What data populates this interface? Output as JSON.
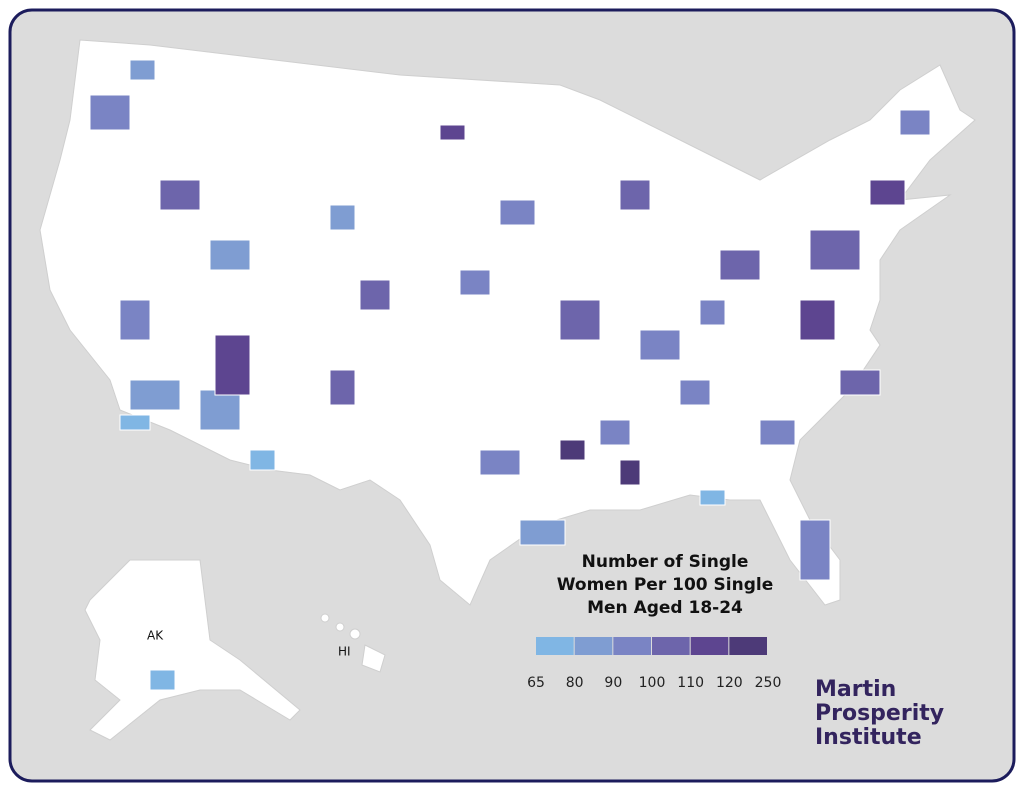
{
  "map": {
    "legend": {
      "title": [
        "Number of Single",
        "Women Per 100 Single",
        "Men Aged 18-24"
      ],
      "ticks": [
        65,
        80,
        90,
        100,
        110,
        120,
        250
      ],
      "colors": [
        "#80b6e4",
        "#7f9dd2",
        "#7a84c4",
        "#6d65ab",
        "#5d4590",
        "#4d3a78"
      ]
    },
    "labels": {
      "alaska": "AK",
      "hawaii": "HI"
    },
    "logo": [
      "Martin",
      "Prosperity",
      "Institute"
    ]
  }
}
